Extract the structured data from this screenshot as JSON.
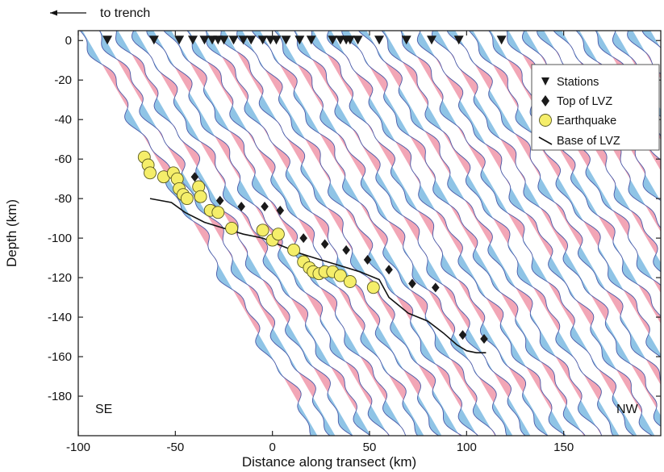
{
  "chart_data": {
    "type": "scatter",
    "title": "",
    "xlabel": "Distance along transect (km)",
    "ylabel": "Depth (km)",
    "xlim": [
      -100,
      200
    ],
    "ylim": [
      -200,
      5
    ],
    "x_ticks": [
      -100,
      -50,
      0,
      50,
      100,
      150
    ],
    "y_ticks": [
      0,
      -20,
      -40,
      -60,
      -80,
      -100,
      -120,
      -140,
      -160,
      -180
    ],
    "grid": false,
    "legend_position": "top-right",
    "annotations": {
      "trench_arrow": "to trench",
      "left_region": "SE",
      "right_region": "NW"
    },
    "colors": {
      "positive_fill": "#f2a6b6",
      "negative_fill": "#8fc4e6",
      "trace_line": "#4a5aa8",
      "earthquake_fill": "#f5ee6a",
      "marker_dark": "#1a1a1a"
    },
    "series": [
      {
        "name": "Stations",
        "marker": "triangle-down",
        "points": [
          [
            -85,
            0
          ],
          [
            -61,
            0
          ],
          [
            -48,
            0
          ],
          [
            -41,
            0
          ],
          [
            -35,
            0
          ],
          [
            -31,
            0
          ],
          [
            -28,
            0
          ],
          [
            -25,
            0
          ],
          [
            -20,
            0
          ],
          [
            -15,
            0
          ],
          [
            -11,
            0
          ],
          [
            -5,
            0
          ],
          [
            -1,
            0
          ],
          [
            2,
            0
          ],
          [
            7,
            0
          ],
          [
            14,
            0
          ],
          [
            20,
            0
          ],
          [
            31,
            0
          ],
          [
            35,
            0
          ],
          [
            38,
            0
          ],
          [
            40,
            0
          ],
          [
            44,
            0
          ],
          [
            55,
            0
          ],
          [
            69,
            0
          ],
          [
            82,
            0
          ],
          [
            96,
            0
          ],
          [
            118,
            0
          ]
        ]
      },
      {
        "name": "Top of LVZ",
        "marker": "diamond",
        "points": [
          [
            -63,
            -65
          ],
          [
            -50,
            -70
          ],
          [
            -40,
            -69
          ],
          [
            -27,
            -81
          ],
          [
            -16,
            -84
          ],
          [
            -4,
            -84
          ],
          [
            4,
            -86
          ],
          [
            16,
            -100
          ],
          [
            27,
            -103
          ],
          [
            38,
            -106
          ],
          [
            49,
            -111
          ],
          [
            60,
            -116
          ],
          [
            72,
            -123
          ],
          [
            84,
            -125
          ],
          [
            98,
            -149
          ],
          [
            109,
            -151
          ]
        ]
      },
      {
        "name": "Earthquake",
        "marker": "circle",
        "points": [
          [
            -66,
            -59
          ],
          [
            -64,
            -63
          ],
          [
            -63,
            -67
          ],
          [
            -56,
            -69
          ],
          [
            -51,
            -67
          ],
          [
            -49,
            -70
          ],
          [
            -48,
            -75
          ],
          [
            -46,
            -78
          ],
          [
            -44,
            -80
          ],
          [
            -38,
            -74
          ],
          [
            -37,
            -79
          ],
          [
            -32,
            -86
          ],
          [
            -28,
            -87
          ],
          [
            -21,
            -95
          ],
          [
            -5,
            -96
          ],
          [
            0,
            -101
          ],
          [
            3,
            -98
          ],
          [
            11,
            -106
          ],
          [
            16,
            -112
          ],
          [
            19,
            -115
          ],
          [
            21,
            -117
          ],
          [
            24,
            -118
          ],
          [
            27,
            -117
          ],
          [
            31,
            -117
          ],
          [
            35,
            -119
          ],
          [
            40,
            -122
          ],
          [
            52,
            -125
          ]
        ]
      },
      {
        "name": "Base of LVZ",
        "marker": "line",
        "points": [
          [
            -63,
            -80
          ],
          [
            -52,
            -82
          ],
          [
            -45,
            -87
          ],
          [
            -35,
            -92
          ],
          [
            -25,
            -95
          ],
          [
            -15,
            -98
          ],
          [
            -5,
            -100
          ],
          [
            5,
            -104
          ],
          [
            15,
            -108
          ],
          [
            25,
            -111
          ],
          [
            35,
            -114
          ],
          [
            45,
            -117
          ],
          [
            55,
            -121
          ],
          [
            60,
            -130
          ],
          [
            70,
            -138
          ],
          [
            80,
            -142
          ],
          [
            88,
            -148
          ],
          [
            95,
            -154
          ],
          [
            100,
            -157
          ],
          [
            105,
            -158
          ],
          [
            110,
            -158
          ]
        ]
      }
    ]
  }
}
